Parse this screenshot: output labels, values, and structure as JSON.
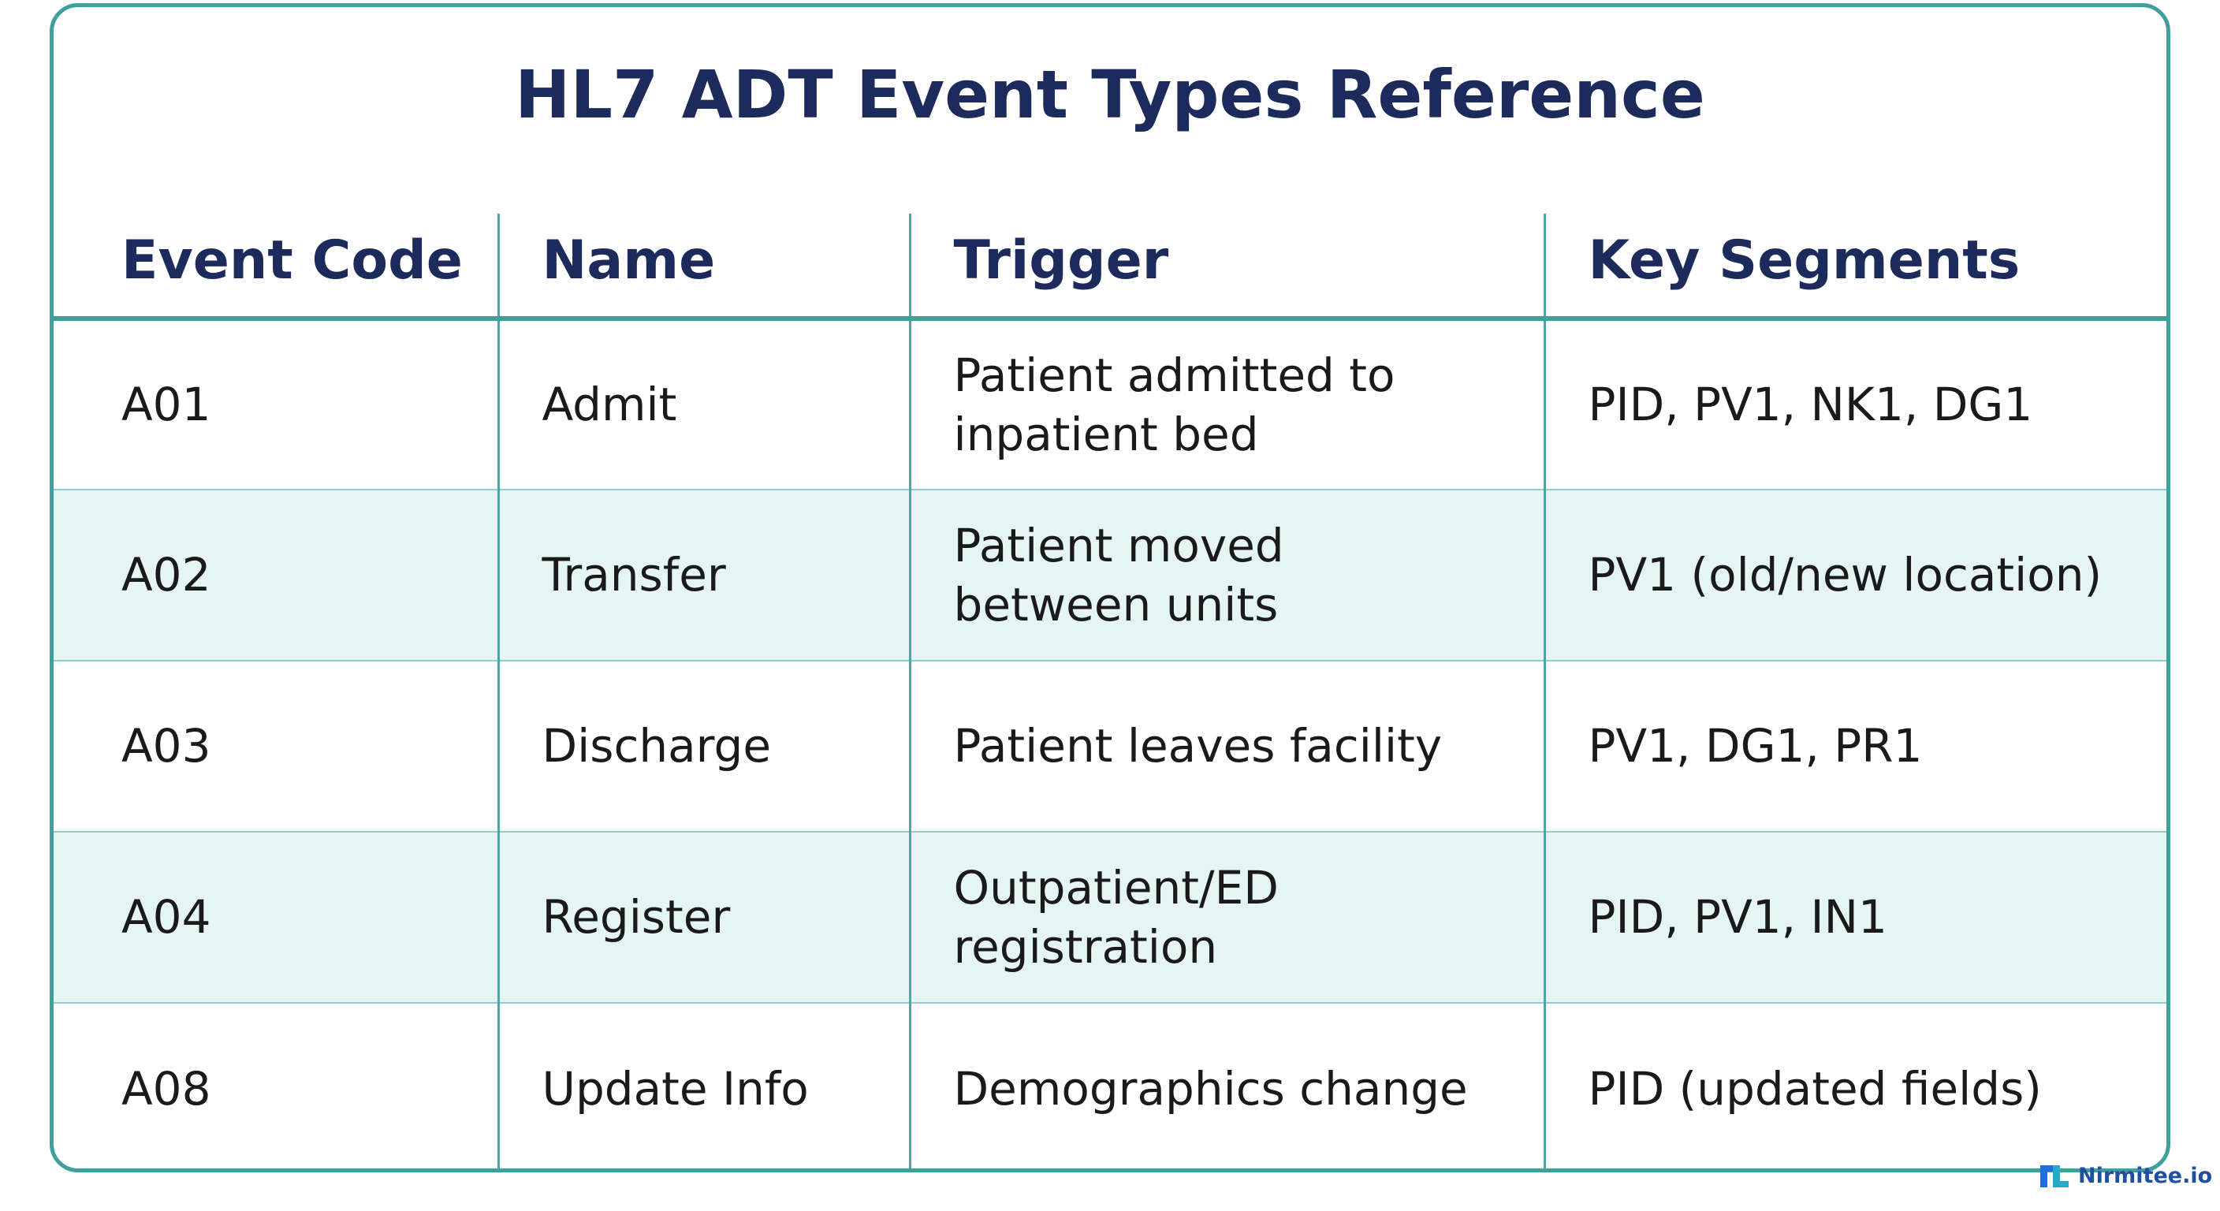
{
  "title": "HL7 ADT Event Types Reference",
  "table": {
    "header": [
      "Event Code",
      "Name",
      "Trigger",
      "Key Segments"
    ],
    "rows": [
      [
        "A01",
        "Admit",
        "Patient admitted to\ninpatient bed",
        "PID, PV1, NK1, DG1"
      ],
      [
        "A02",
        "Transfer",
        "Patient moved\nbetween units",
        "PV1 (old/new location)"
      ],
      [
        "A03",
        "Discharge",
        "Patient leaves facility",
        "PV1, DG1, PR1"
      ],
      [
        "A04",
        "Register",
        "Outpatient/ED\nregistration",
        "PID, PV1, IN1"
      ],
      [
        "A08",
        "Update Info",
        "Demographics change",
        "PID (updated fields)"
      ]
    ]
  },
  "watermark": "Nirmitee.io"
}
